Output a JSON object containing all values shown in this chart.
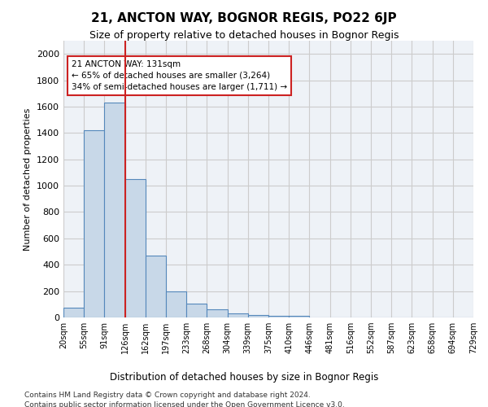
{
  "title": "21, ANCTON WAY, BOGNOR REGIS, PO22 6JP",
  "subtitle": "Size of property relative to detached houses in Bognor Regis",
  "xlabel": "Distribution of detached houses by size in Bognor Regis",
  "ylabel": "Number of detached properties",
  "bar_values": [
    75,
    1420,
    1630,
    1050,
    470,
    200,
    105,
    60,
    30,
    20,
    15,
    10,
    0,
    0,
    0,
    0,
    0,
    0,
    0,
    0
  ],
  "bin_labels": [
    "20sqm",
    "55sqm",
    "91sqm",
    "126sqm",
    "162sqm",
    "197sqm",
    "233sqm",
    "268sqm",
    "304sqm",
    "339sqm",
    "375sqm",
    "410sqm",
    "446sqm",
    "481sqm",
    "516sqm",
    "552sqm",
    "587sqm",
    "623sqm",
    "658sqm",
    "694sqm",
    "729sqm"
  ],
  "bar_color": "#c8d8e8",
  "bar_edge_color": "#5588bb",
  "vline_pos": 2.5,
  "vline_color": "#cc2222",
  "annotation_text": "21 ANCTON WAY: 131sqm\n← 65% of detached houses are smaller (3,264)\n34% of semi-detached houses are larger (1,711) →",
  "annotation_box_color": "#ffffff",
  "annotation_box_edge": "#cc2222",
  "ylim": [
    0,
    2100
  ],
  "yticks": [
    0,
    200,
    400,
    600,
    800,
    1000,
    1200,
    1400,
    1600,
    1800,
    2000
  ],
  "footer_line1": "Contains HM Land Registry data © Crown copyright and database right 2024.",
  "footer_line2": "Contains public sector information licensed under the Open Government Licence v3.0.",
  "grid_color": "#cccccc",
  "background_color": "#eef2f7"
}
